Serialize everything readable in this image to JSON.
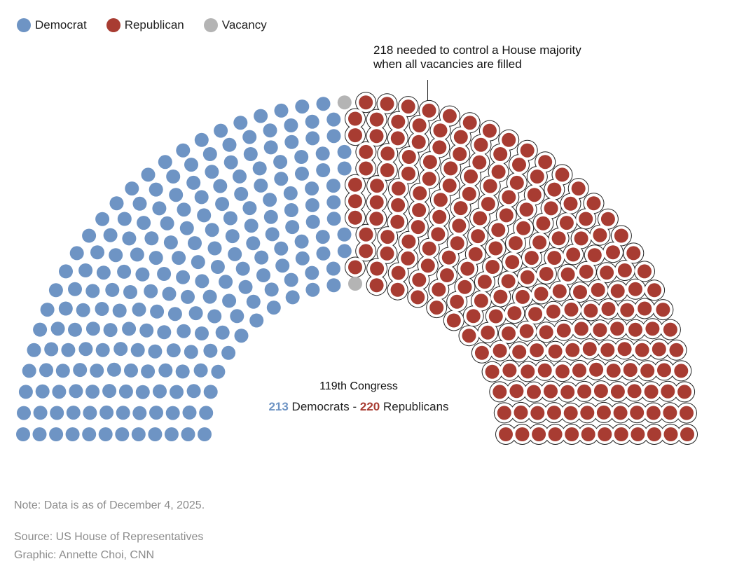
{
  "legend": {
    "items": [
      {
        "label": "Democrat",
        "color": "#6e94c4"
      },
      {
        "label": "Republican",
        "color": "#a83c32"
      },
      {
        "label": "Vacancy",
        "color": "#b4b4b4"
      }
    ]
  },
  "annotation": {
    "line1": "218 needed to control a House majority",
    "line2": "when all vacancies are filled"
  },
  "center": {
    "title": "119th Congress",
    "dem_count": "213",
    "dem_label": "Democrats",
    "separator": "-",
    "rep_count": "220",
    "rep_label": "Republicans"
  },
  "chart_data": {
    "type": "parliament",
    "title": "119th Congress",
    "total_seats": 435,
    "majority_threshold": 218,
    "series": [
      {
        "name": "Democrat",
        "value": 213,
        "color": "#6e94c4"
      },
      {
        "name": "Vacancy",
        "value": 2,
        "color": "#b4b4b4"
      },
      {
        "name": "Republican",
        "value": 220,
        "color": "#a83c32"
      }
    ],
    "annotation": "218 needed to control a House majority when all vacancies are filled"
  },
  "footer": {
    "note": "Note: Data is as of December 4, 2025.",
    "source": "Source: US House of Representatives",
    "credit": "Graphic: Annette Choi, CNN"
  }
}
